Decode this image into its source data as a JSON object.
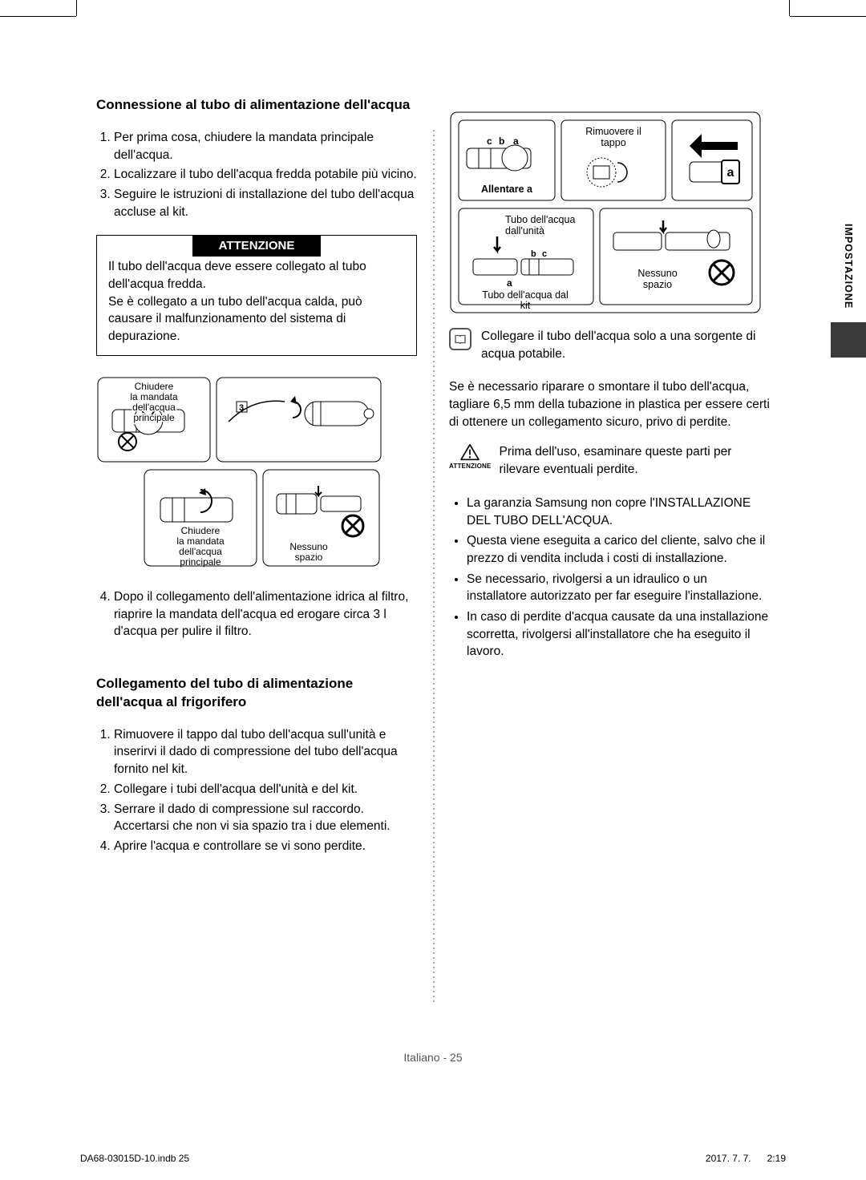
{
  "side_tab": {
    "label": "IMPOSTAZIONE"
  },
  "section1": {
    "title": "Connessione al tubo di alimentazione dell'acqua",
    "steps": [
      "Per prima cosa, chiudere la mandata principale dell'acqua.",
      "Localizzare il tubo dell'acqua fredda potabile più vicino.",
      "Seguire le istruzioni di installazione del tubo dell'acqua accluse al kit."
    ],
    "attention_header": "ATTENZIONE",
    "attention_body": "Il tubo dell'acqua deve essere collegato al tubo dell'acqua fredda.\nSe è collegato a un tubo dell'acqua calda, può causare il malfunzionamento del sistema di depurazione.",
    "step4": "Dopo il collegamento dell'alimentazione idrica al filtro, riaprire la mandata dell'acqua ed erogare circa 3 l d'acqua per pulire il filtro."
  },
  "section2": {
    "title": "Collegamento del tubo di alimentazione dell'acqua al frigorifero",
    "steps": [
      "Rimuovere il tappo dal tubo dell'acqua sull'unità e inserirvi il dado di compressione del tubo dell'acqua fornito nel kit.",
      "Collegare i tubi dell'acqua dell'unità e del kit.",
      "Serrare il dado di compressione sul raccordo. Accertarsi che non vi sia spazio tra i due elementi.",
      "Aprire l'acqua e controllare se vi sono perdite."
    ]
  },
  "figures": {
    "fig_a": {
      "close_main": "Chiudere\nla mandata\ndell'acqua\nprincipale",
      "num_3": "3",
      "close_main2": "Chiudere\nla mandata\ndell'acqua\nprincipale",
      "no_gap": "Nessuno\nspazio"
    },
    "fig_b": {
      "loosen": "Allentare a",
      "remove_cap": "Rimuovere il\ntappo",
      "letter_a": "a",
      "letter_b": "b",
      "letter_c": "c",
      "tube_unit": "Tubo dell'acqua\ndall'unità",
      "tube_kit": "Tubo dell'acqua dal\nkit",
      "no_gap": "Nessuno\nspazio"
    }
  },
  "rightcol": {
    "note": "Collegare il tubo dell'acqua solo a una sorgente di acqua potabile.",
    "para": "Se è necessario riparare o smontare il tubo dell'acqua, tagliare 6,5 mm della tubazione in plastica per essere certi di ottenere un collegamento sicuro, privo di perdite.",
    "warn_label": "ATTENZIONE",
    "warn": "Prima dell'uso, esaminare queste parti per rilevare eventuali perdite.",
    "bullets": [
      "La garanzia Samsung non copre l'INSTALLAZIONE DEL TUBO DELL'ACQUA.",
      "Questa viene eseguita a carico del cliente, salvo che il prezzo di vendita includa i costi di installazione.",
      "Se necessario, rivolgersi a un idraulico o un installatore autorizzato per far eseguire l'installazione.",
      "In caso di perdite d'acqua causate da una installazione scorretta, rivolgersi all'installatore che ha eseguito il lavoro."
    ]
  },
  "footer": {
    "page_label": "Italiano - 25"
  },
  "print": {
    "left": "DA68-03015D-10.indb   25",
    "right": "2017. 7. 7.      2:19"
  },
  "colors": {
    "text": "#000000",
    "bg": "#ffffff",
    "attention_bg": "#000000",
    "attention_fg": "#ffffff",
    "tab_dark": "#3a3a3a",
    "footer_text": "#555555"
  },
  "typography": {
    "heading_size_pt": 12.5,
    "body_size_pt": 11.5,
    "fig_label_size_pt": 9.3
  }
}
